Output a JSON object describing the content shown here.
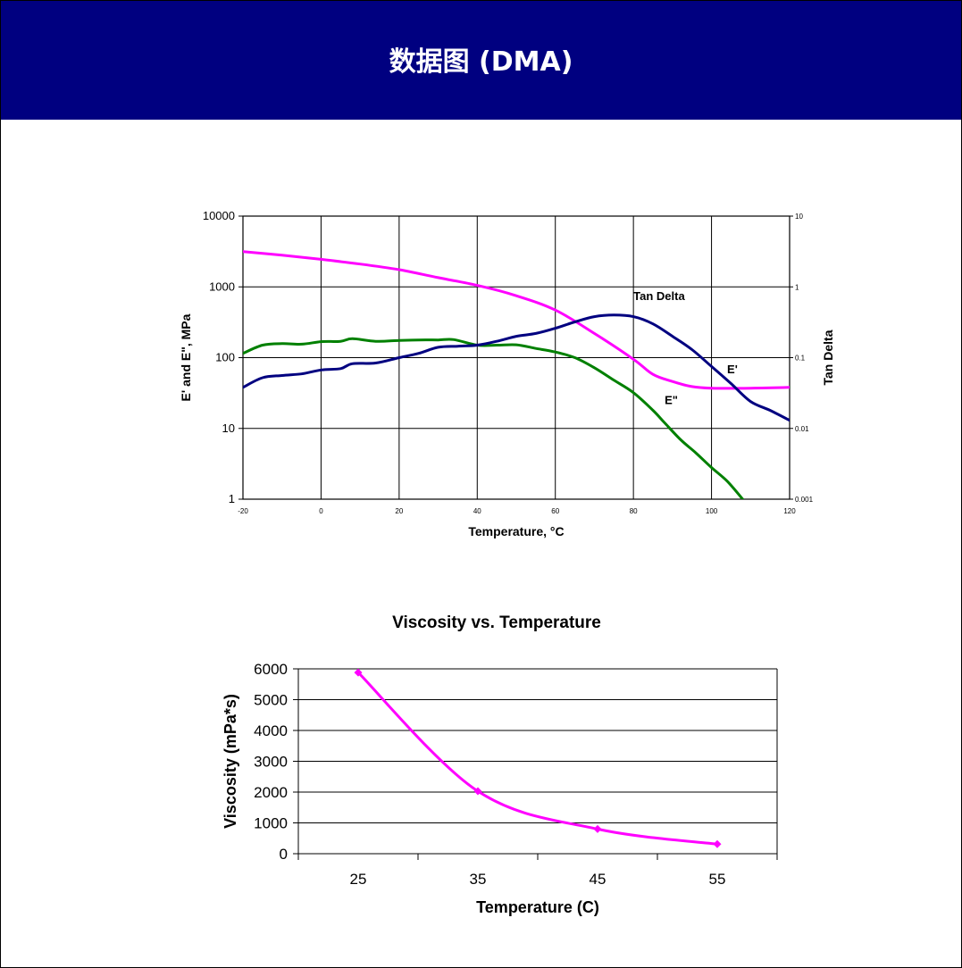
{
  "header": {
    "title": "数据图 (DMA)",
    "background": "#000080"
  },
  "chart_data": [
    {
      "type": "line",
      "title": "",
      "xlabel": "Temperature, °C",
      "ylabel": "E' and E\", MPa",
      "y2label": "Tan Delta",
      "xlim": [
        -20,
        120
      ],
      "xticks": [
        "-20",
        "0",
        "20",
        "40",
        "60",
        "80",
        "100",
        "120"
      ],
      "ylim": [
        1,
        10000
      ],
      "yscale": "log",
      "yticks": [
        "1",
        "10",
        "100",
        "1000",
        "10000"
      ],
      "y2lim": [
        0.001,
        10
      ],
      "y2scale": "log",
      "y2ticks": [
        "0.001",
        "0.01",
        "0.1",
        "1",
        "10"
      ],
      "grid": true,
      "series": [
        {
          "name": "E'",
          "axis": "left",
          "color": "#ff00ff",
          "label_at": [
            104,
            60
          ],
          "points": [
            [
              -20,
              3150
            ],
            [
              -10,
              2800
            ],
            [
              0,
              2450
            ],
            [
              10,
              2100
            ],
            [
              20,
              1750
            ],
            [
              30,
              1350
            ],
            [
              40,
              1050
            ],
            [
              50,
              750
            ],
            [
              60,
              470
            ],
            [
              70,
              220
            ],
            [
              80,
              95
            ],
            [
              85,
              58
            ],
            [
              90,
              46
            ],
            [
              95,
              39
            ],
            [
              100,
              37
            ],
            [
              110,
              37
            ],
            [
              120,
              38
            ]
          ]
        },
        {
          "name": "E\"",
          "axis": "left",
          "color": "#008000",
          "label_at": [
            88,
            22
          ],
          "points": [
            [
              -20,
              115
            ],
            [
              -15,
              150
            ],
            [
              -10,
              158
            ],
            [
              -5,
              155
            ],
            [
              0,
              168
            ],
            [
              5,
              170
            ],
            [
              8,
              185
            ],
            [
              14,
              170
            ],
            [
              20,
              175
            ],
            [
              25,
              178
            ],
            [
              30,
              178
            ],
            [
              34,
              180
            ],
            [
              40,
              150
            ],
            [
              45,
              150
            ],
            [
              50,
              152
            ],
            [
              55,
              135
            ],
            [
              60,
              120
            ],
            [
              65,
              100
            ],
            [
              70,
              72
            ],
            [
              75,
              48
            ],
            [
              80,
              32
            ],
            [
              85,
              18
            ],
            [
              88,
              12
            ],
            [
              92,
              7
            ],
            [
              96,
              4.5
            ],
            [
              100,
              2.8
            ],
            [
              104,
              1.8
            ],
            [
              108,
              1
            ]
          ]
        },
        {
          "name": "Tan Delta",
          "axis": "right",
          "color": "#000080",
          "label_at": [
            80,
            650
          ],
          "points": [
            [
              -20,
              0.038
            ],
            [
              -15,
              0.052
            ],
            [
              -10,
              0.056
            ],
            [
              -5,
              0.059
            ],
            [
              0,
              0.067
            ],
            [
              5,
              0.07
            ],
            [
              8,
              0.082
            ],
            [
              14,
              0.084
            ],
            [
              20,
              0.1
            ],
            [
              25,
              0.115
            ],
            [
              30,
              0.14
            ],
            [
              35,
              0.145
            ],
            [
              40,
              0.15
            ],
            [
              45,
              0.17
            ],
            [
              50,
              0.2
            ],
            [
              55,
              0.22
            ],
            [
              60,
              0.26
            ],
            [
              65,
              0.32
            ],
            [
              70,
              0.38
            ],
            [
              75,
              0.4
            ],
            [
              80,
              0.38
            ],
            [
              85,
              0.3
            ],
            [
              90,
              0.2
            ],
            [
              95,
              0.13
            ],
            [
              100,
              0.075
            ],
            [
              105,
              0.043
            ],
            [
              110,
              0.024
            ],
            [
              115,
              0.018
            ],
            [
              120,
              0.013
            ]
          ]
        }
      ]
    },
    {
      "type": "line",
      "title": "Viscosity vs. Temperature",
      "xlabel": "Temperature (C)",
      "ylabel": "Viscosity (mPa*s)",
      "categories": [
        "25",
        "35",
        "45",
        "55"
      ],
      "ylim": [
        0,
        6000
      ],
      "yticks": [
        "0",
        "1000",
        "2000",
        "3000",
        "4000",
        "5000",
        "6000"
      ],
      "grid": true,
      "series": [
        {
          "color": "#ff00ff",
          "marker": "diamond",
          "values": [
            5880,
            2030,
            800,
            310
          ]
        }
      ]
    }
  ]
}
